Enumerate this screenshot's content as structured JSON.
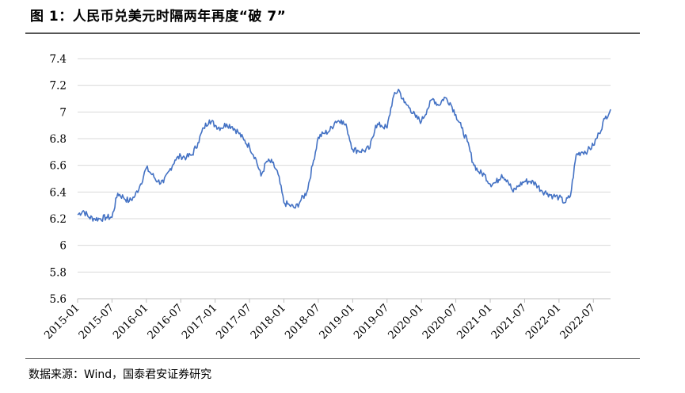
{
  "figure": {
    "title": "图 1：人民币兑美元时隔两年再度“破 7”",
    "source": "数据来源：Wind，国泰君安证券研究"
  },
  "colors": {
    "line": "#4472C4",
    "grid": "#d9d9d9",
    "axis": "#bfbfbf"
  },
  "chart_data": {
    "type": "line",
    "title": "",
    "xlabel": "",
    "ylabel": "",
    "ylim": [
      5.6,
      7.4
    ],
    "yticks": [
      5.6,
      5.8,
      6,
      6.2,
      6.4,
      6.6,
      6.8,
      7,
      7.2,
      7.4
    ],
    "ytick_labels": [
      "5.6",
      "5.8",
      "6",
      "6.2",
      "6.4",
      "6.6",
      "6.8",
      "7",
      "7.2",
      "7.4"
    ],
    "xlim": [
      "2015-01",
      "2022-10"
    ],
    "xtick_labels": [
      "2015-01",
      "2015-07",
      "2016-01",
      "2016-07",
      "2017-01",
      "2017-07",
      "2018-01",
      "2018-07",
      "2019-01",
      "2019-07",
      "2020-01",
      "2020-07",
      "2021-01",
      "2021-07",
      "2022-01",
      "2022-07"
    ],
    "grid": "horizontal",
    "legend": "none",
    "series": [
      {
        "x": [
          "2015-01",
          "2015-02",
          "2015-03",
          "2015-04",
          "2015-05",
          "2015-06",
          "2015-07",
          "2015-08",
          "2015-09",
          "2015-10",
          "2015-11",
          "2015-12",
          "2016-01",
          "2016-02",
          "2016-03",
          "2016-04",
          "2016-05",
          "2016-06",
          "2016-07",
          "2016-08",
          "2016-09",
          "2016-10",
          "2016-11",
          "2016-12",
          "2017-01",
          "2017-02",
          "2017-03",
          "2017-04",
          "2017-05",
          "2017-06",
          "2017-07",
          "2017-08",
          "2017-09",
          "2017-10",
          "2017-11",
          "2017-12",
          "2018-01",
          "2018-02",
          "2018-03",
          "2018-04",
          "2018-05",
          "2018-06",
          "2018-07",
          "2018-08",
          "2018-09",
          "2018-10",
          "2018-11",
          "2018-12",
          "2019-01",
          "2019-02",
          "2019-03",
          "2019-04",
          "2019-05",
          "2019-06",
          "2019-07",
          "2019-08",
          "2019-09",
          "2019-10",
          "2019-11",
          "2019-12",
          "2020-01",
          "2020-02",
          "2020-03",
          "2020-04",
          "2020-05",
          "2020-06",
          "2020-07",
          "2020-08",
          "2020-09",
          "2020-10",
          "2020-11",
          "2020-12",
          "2021-01",
          "2021-02",
          "2021-03",
          "2021-04",
          "2021-05",
          "2021-06",
          "2021-07",
          "2021-08",
          "2021-09",
          "2021-10",
          "2021-11",
          "2021-12",
          "2022-01",
          "2022-02",
          "2022-03",
          "2022-04",
          "2022-05",
          "2022-06",
          "2022-07",
          "2022-08",
          "2022-09",
          "2022-10"
        ],
        "y": [
          6.23,
          6.26,
          6.21,
          6.2,
          6.2,
          6.21,
          6.21,
          6.39,
          6.36,
          6.33,
          6.37,
          6.46,
          6.58,
          6.53,
          6.48,
          6.47,
          6.56,
          6.64,
          6.67,
          6.66,
          6.68,
          6.77,
          6.88,
          6.94,
          6.9,
          6.88,
          6.91,
          6.89,
          6.85,
          6.79,
          6.74,
          6.66,
          6.52,
          6.63,
          6.62,
          6.53,
          6.32,
          6.3,
          6.28,
          6.34,
          6.4,
          6.6,
          6.81,
          6.84,
          6.86,
          6.93,
          6.94,
          6.88,
          6.72,
          6.71,
          6.71,
          6.73,
          6.9,
          6.9,
          6.88,
          7.1,
          7.17,
          7.07,
          7.03,
          6.96,
          6.93,
          7.02,
          7.1,
          7.05,
          7.11,
          7.07,
          6.98,
          6.88,
          6.78,
          6.62,
          6.55,
          6.53,
          6.46,
          6.47,
          6.53,
          6.49,
          6.4,
          6.45,
          6.48,
          6.48,
          6.46,
          6.41,
          6.39,
          6.37,
          6.36,
          6.32,
          6.37,
          6.68,
          6.7,
          6.71,
          6.75,
          6.84,
          6.95,
          7.02
        ]
      }
    ]
  }
}
